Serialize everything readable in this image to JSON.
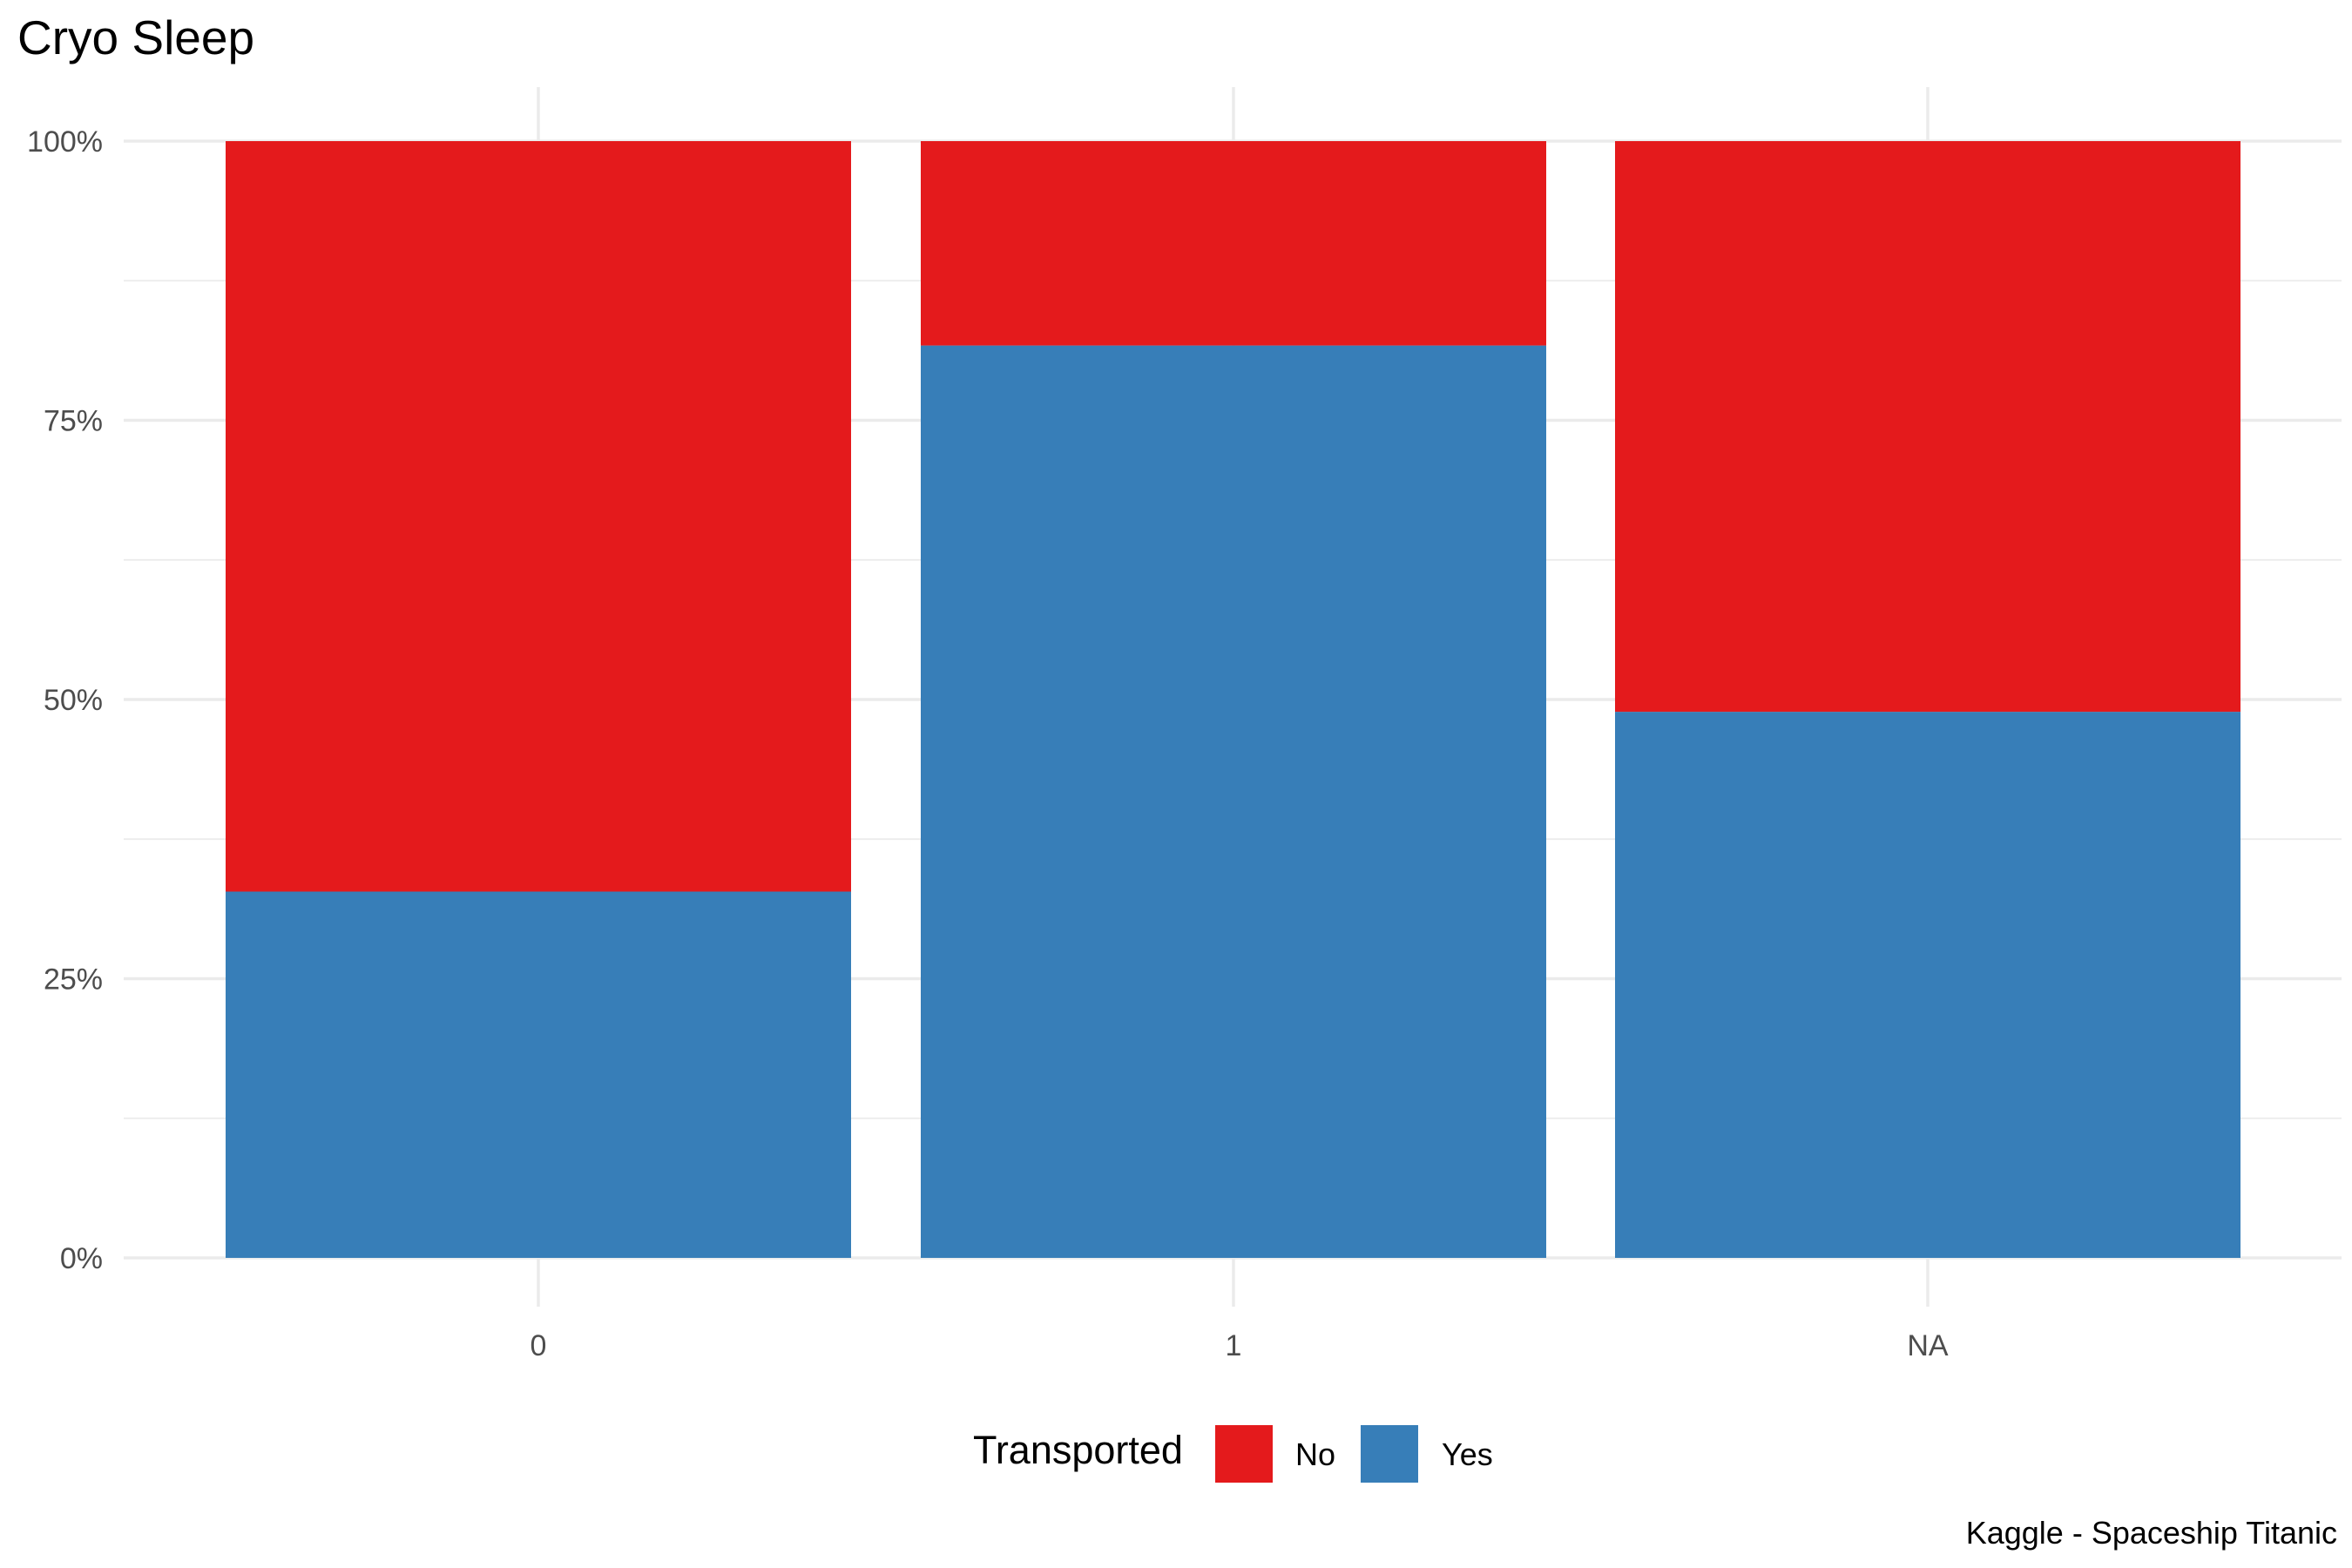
{
  "chart_data": {
    "type": "bar",
    "stacked": true,
    "normalized": true,
    "title": "Cryo Sleep",
    "xlabel": "",
    "ylabel": "",
    "categories": [
      "0",
      "1",
      "NA"
    ],
    "series": [
      {
        "name": "No",
        "color": "#E41A1C",
        "values": [
          0.672,
          0.183,
          0.511
        ]
      },
      {
        "name": "Yes",
        "color": "#377EB8",
        "values": [
          0.328,
          0.817,
          0.489
        ]
      }
    ],
    "ylim": [
      0,
      1
    ],
    "y_ticks": [
      0,
      0.25,
      0.5,
      0.75,
      1
    ],
    "y_tick_labels": [
      "0%",
      "25%",
      "50%",
      "75%",
      "100%"
    ],
    "grid": true,
    "legend": {
      "title": "Transported",
      "position": "bottom",
      "entries": [
        "No",
        "Yes"
      ]
    },
    "caption": "Kaggle - Spaceship Titanic"
  }
}
